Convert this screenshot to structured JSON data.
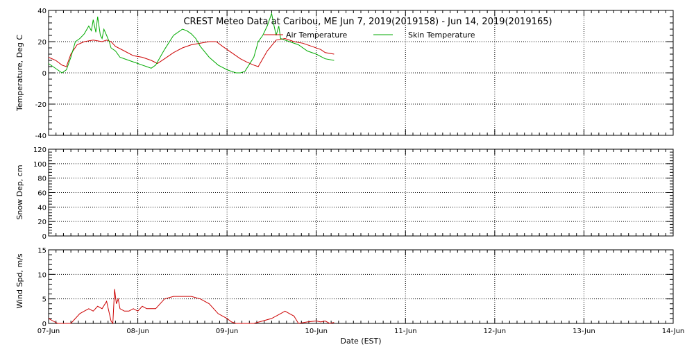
{
  "title": "CREST Meteo Data at Caribou, ME   Jun  7, 2019(2019158) - Jun 14, 2019(2019165)",
  "xlabel": "Date (EST)",
  "colors": {
    "air": "#cc0000",
    "skin": "#00aa00",
    "wind": "#cc0000",
    "axis": "#000000"
  },
  "chart_data": [
    {
      "type": "line",
      "ylabel": "Temperature, Deg C",
      "xlim": [
        0,
        7
      ],
      "ylim": [
        -40,
        40
      ],
      "yticks": [
        -40,
        -20,
        0,
        20,
        40
      ],
      "xticks": [
        0,
        1,
        2,
        3,
        4,
        5,
        6,
        7
      ],
      "xticklabels": [
        "07-Jun",
        "08-Jun",
        "09-Jun",
        "10-Jun",
        "11-Jun",
        "12-Jun",
        "13-Jun",
        "14-Jun"
      ],
      "grid": true,
      "legend_position": "top-center",
      "series": [
        {
          "name": "Air Temperature",
          "x": [
            0.0,
            0.08,
            0.15,
            0.2,
            0.25,
            0.32,
            0.4,
            0.5,
            0.6,
            0.65,
            0.7,
            0.75,
            0.85,
            0.95,
            1.05,
            1.15,
            1.22,
            1.3,
            1.4,
            1.5,
            1.6,
            1.7,
            1.8,
            1.88,
            1.95,
            2.05,
            2.15,
            2.22,
            2.3,
            2.35,
            2.45,
            2.55,
            2.65,
            2.75,
            2.85,
            2.95,
            3.05,
            3.1,
            3.2
          ],
          "y": [
            10,
            8,
            5,
            4,
            12,
            18,
            20,
            21,
            20,
            21,
            20,
            17,
            14,
            11,
            10,
            8,
            6,
            9,
            13,
            16,
            18,
            19,
            20,
            20,
            17,
            13,
            9,
            7,
            5,
            4,
            14,
            21,
            22,
            20,
            19,
            17,
            15,
            13,
            12
          ]
        },
        {
          "name": "Skin Temperature",
          "x": [
            0.0,
            0.05,
            0.1,
            0.15,
            0.2,
            0.25,
            0.3,
            0.35,
            0.4,
            0.45,
            0.48,
            0.5,
            0.53,
            0.55,
            0.58,
            0.6,
            0.62,
            0.65,
            0.68,
            0.7,
            0.75,
            0.8,
            0.9,
            1.0,
            1.05,
            1.1,
            1.15,
            1.2,
            1.3,
            1.4,
            1.5,
            1.55,
            1.6,
            1.65,
            1.7,
            1.8,
            1.9,
            2.0,
            2.05,
            2.1,
            2.15,
            2.2,
            2.3,
            2.35,
            2.4,
            2.45,
            2.5,
            2.52,
            2.55,
            2.58,
            2.6,
            2.65,
            2.7,
            2.8,
            2.9,
            3.0,
            3.1,
            3.2
          ],
          "y": [
            6,
            4,
            2,
            0,
            2,
            10,
            20,
            22,
            25,
            30,
            27,
            34,
            26,
            36,
            24,
            22,
            28,
            24,
            20,
            16,
            14,
            10,
            8,
            6,
            5,
            4,
            3,
            5,
            15,
            24,
            28,
            27,
            25,
            22,
            17,
            10,
            5,
            2,
            1,
            0,
            0,
            1,
            10,
            20,
            24,
            30,
            38,
            32,
            24,
            30,
            22,
            21,
            20,
            18,
            14,
            12,
            9,
            8
          ]
        }
      ]
    },
    {
      "type": "line",
      "ylabel": "Snow Dep, cm",
      "xlim": [
        0,
        7
      ],
      "ylim": [
        0,
        120
      ],
      "yticks": [
        0,
        20,
        40,
        60,
        80,
        100,
        120
      ],
      "xticks": [
        0,
        1,
        2,
        3,
        4,
        5,
        6,
        7
      ],
      "grid": true,
      "series": []
    },
    {
      "type": "line",
      "ylabel": "Wind Spd, m/s",
      "xlim": [
        0,
        7
      ],
      "ylim": [
        0,
        15
      ],
      "yticks": [
        0,
        5,
        10,
        15
      ],
      "xticks": [
        0,
        1,
        2,
        3,
        4,
        5,
        6,
        7
      ],
      "grid": true,
      "series": [
        {
          "name": "",
          "x": [
            0.0,
            0.05,
            0.1,
            0.15,
            0.2,
            0.25,
            0.3,
            0.35,
            0.4,
            0.45,
            0.5,
            0.55,
            0.6,
            0.65,
            0.7,
            0.72,
            0.74,
            0.76,
            0.78,
            0.8,
            0.85,
            0.9,
            0.95,
            1.0,
            1.05,
            1.1,
            1.2,
            1.3,
            1.4,
            1.5,
            1.6,
            1.7,
            1.8,
            1.9,
            1.95,
            2.0,
            2.05,
            2.1,
            2.2,
            2.3,
            2.4,
            2.5,
            2.6,
            2.65,
            2.7,
            2.75,
            2.8,
            2.9,
            3.0,
            3.05,
            3.1,
            3.15,
            3.2
          ],
          "y": [
            1.0,
            0.5,
            0.0,
            0.0,
            0.0,
            0.0,
            1.0,
            2.0,
            2.5,
            3.0,
            2.5,
            3.5,
            3.0,
            4.5,
            0.5,
            0.0,
            7.0,
            4.0,
            5.0,
            3.0,
            2.5,
            2.5,
            3.0,
            2.5,
            3.5,
            3.0,
            3.0,
            5.0,
            5.5,
            5.5,
            5.5,
            5.0,
            4.0,
            2.0,
            1.5,
            1.0,
            0.3,
            0.0,
            0.0,
            0.0,
            0.5,
            1.0,
            2.0,
            2.5,
            2.0,
            1.5,
            0.0,
            0.3,
            0.5,
            0.3,
            0.5,
            0.0,
            0.2
          ]
        }
      ]
    }
  ]
}
